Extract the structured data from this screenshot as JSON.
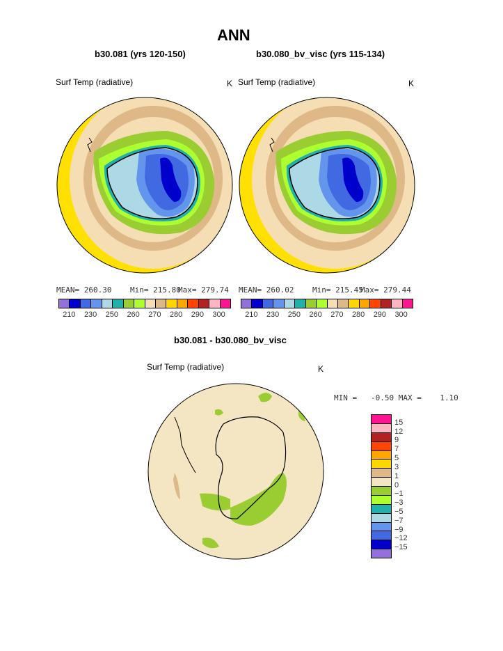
{
  "title": "ANN",
  "panels": [
    {
      "case": "b30.081 (yrs 120-150)",
      "field": "Surf Temp (radiative)",
      "units": "K",
      "mean": "MEAN= 260.30",
      "min": "Min= 215.80",
      "max": "Max= 279.74",
      "colorbar": {
        "colors": [
          "#9370DB",
          "#0000CD",
          "#4169E1",
          "#6495ED",
          "#ADD8E6",
          "#20B2AA",
          "#9ACD32",
          "#ADFF2F",
          "#F5DEB3",
          "#DEB887",
          "#FFD700",
          "#FFA500",
          "#FF4500",
          "#B22222",
          "#FFB6C1",
          "#FF1493"
        ],
        "ticks": [
          "210",
          "230",
          "250",
          "260",
          "270",
          "280",
          "290",
          "300"
        ]
      }
    },
    {
      "case": "b30.080_bv_visc (yrs 115-134)",
      "field": "Surf Temp (radiative)",
      "units": "K",
      "mean": "MEAN= 260.02",
      "min": "Min= 215.45",
      "max": "Max= 279.44",
      "colorbar": {
        "colors": [
          "#9370DB",
          "#0000CD",
          "#4169E1",
          "#6495ED",
          "#ADD8E6",
          "#20B2AA",
          "#9ACD32",
          "#ADFF2F",
          "#F5DEB3",
          "#DEB887",
          "#FFD700",
          "#FFA500",
          "#FF4500",
          "#B22222",
          "#FFB6C1",
          "#FF1493"
        ],
        "ticks": [
          "210",
          "230",
          "250",
          "260",
          "270",
          "280",
          "290",
          "300"
        ]
      }
    }
  ],
  "diff": {
    "title": "b30.081 - b30.080_bv_visc",
    "field": "Surf Temp (radiative)",
    "units": "K",
    "minmax": "MIN =   -0.50 MAX =    1.10",
    "colorbar": {
      "colors": [
        "#FF1493",
        "#FFB6C1",
        "#B22222",
        "#FF4500",
        "#FFA500",
        "#FFD700",
        "#DEB887",
        "#F5E6C3",
        "#9ACD32",
        "#ADFF2F",
        "#20B2AA",
        "#ADD8E6",
        "#6495ED",
        "#4169E1",
        "#0000CD",
        "#9370DB"
      ],
      "ticks": [
        "15",
        "12",
        "9",
        "7",
        "5",
        "3",
        "1",
        "0",
        "−1",
        "−3",
        "−5",
        "−7",
        "−9",
        "−12",
        "−15"
      ]
    }
  },
  "map_colors": {
    "yellow": "#FFE000",
    "tan": "#DEB887",
    "wheat": "#F5DEB3",
    "green": "#9ACD32",
    "lightgreen": "#ADFF2F",
    "teal": "#20B2AA",
    "lightblue": "#ADD8E6",
    "cornflower": "#6495ED",
    "royal": "#4169E1",
    "blue": "#0000CD",
    "diffbg": "#F5E6C3"
  }
}
